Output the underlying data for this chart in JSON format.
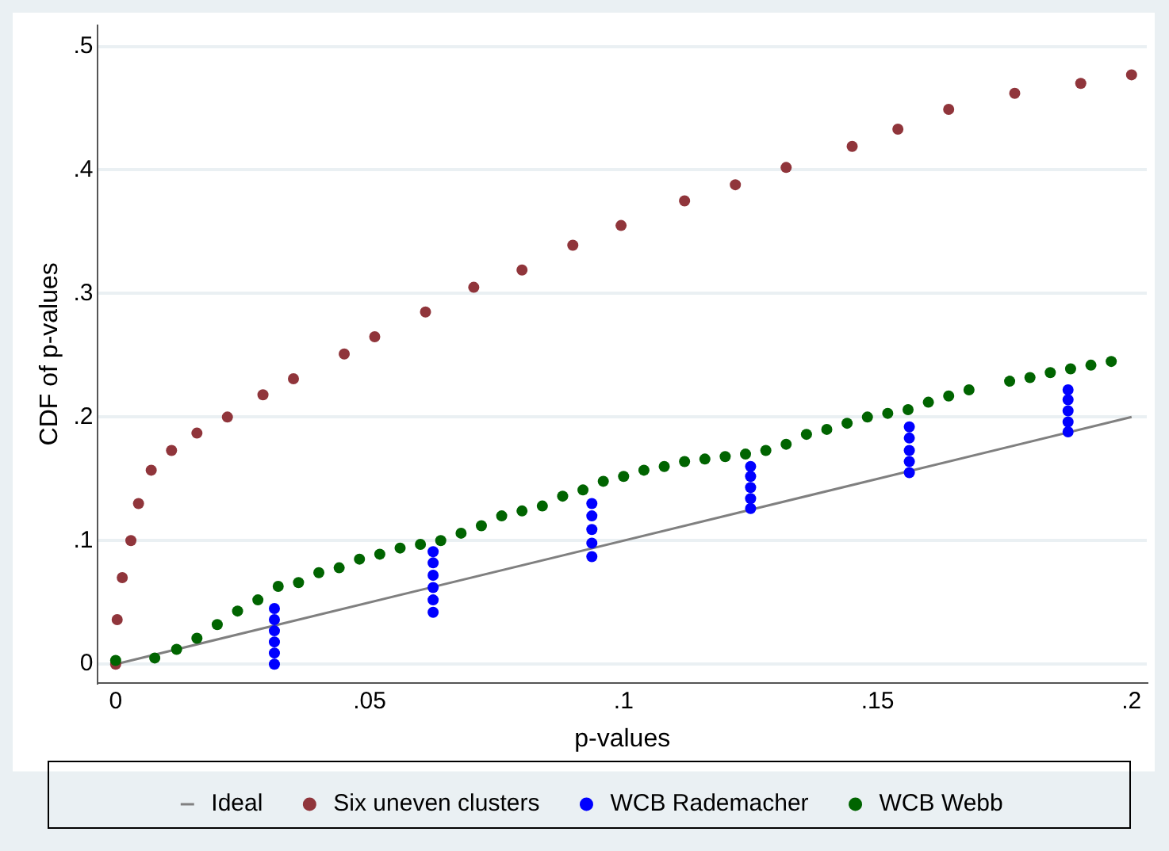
{
  "chart_data": {
    "type": "scatter",
    "xlabel": "p-values",
    "ylabel": "CDF of p-values",
    "xlim": [
      -0.0035,
      0.203
    ],
    "ylim": [
      -0.015,
      0.517
    ],
    "xticks": [
      0,
      {
        "value": 0.05,
        "label": ".05"
      },
      {
        "value": 0.1,
        "label": ".1"
      },
      {
        "value": 0.15,
        "label": ".15"
      },
      {
        "value": 0.2,
        "label": ".2"
      }
    ],
    "yticks": [
      0,
      {
        "value": 0.1,
        "label": ".1"
      },
      {
        "value": 0.2,
        "label": ".2"
      },
      {
        "value": 0.3,
        "label": ".3"
      },
      {
        "value": 0.4,
        "label": ".4"
      },
      {
        "value": 0.5,
        "label": ".5"
      }
    ],
    "grid": "y",
    "legend": "bottom",
    "marker": "circle",
    "series": [
      {
        "name": "Ideal",
        "type": "line",
        "color": "#808080",
        "marker": "none",
        "x": [
          0,
          0.2
        ],
        "values": [
          0,
          0.2
        ]
      },
      {
        "name": "Six uneven clusters",
        "color": "#90353b",
        "x": [
          0,
          0.0003,
          0.0013,
          0.003,
          0.0045,
          0.007,
          0.011,
          0.016,
          0.022,
          0.029,
          0.035,
          0.045,
          0.051,
          0.061,
          0.0705,
          0.08,
          0.09,
          0.0995,
          0.112,
          0.122,
          0.132,
          0.145,
          0.154,
          0.164,
          0.177,
          0.19,
          0.2
        ],
        "values": [
          0,
          0.036,
          0.07,
          0.1,
          0.13,
          0.157,
          0.173,
          0.187,
          0.2,
          0.218,
          0.231,
          0.251,
          0.265,
          0.285,
          0.305,
          0.319,
          0.339,
          0.355,
          0.375,
          0.388,
          0.402,
          0.419,
          0.433,
          0.449,
          0.462,
          0.47,
          0.477
        ]
      },
      {
        "name": "WCB Rademacher",
        "color": "#0000ff",
        "x": [
          0.03125,
          0.03125,
          0.03125,
          0.03125,
          0.03125,
          0.03125,
          0.0625,
          0.0625,
          0.0625,
          0.0625,
          0.0625,
          0.0625,
          0.09375,
          0.09375,
          0.09375,
          0.09375,
          0.09375,
          0.125,
          0.125,
          0.125,
          0.125,
          0.125,
          0.15625,
          0.15625,
          0.15625,
          0.15625,
          0.15625,
          0.1875,
          0.1875,
          0.1875,
          0.1875,
          0.1875
        ],
        "values": [
          0,
          0.009,
          0.018,
          0.027,
          0.036,
          0.045,
          0.042,
          0.052,
          0.062,
          0.072,
          0.082,
          0.091,
          0.087,
          0.098,
          0.109,
          0.12,
          0.13,
          0.126,
          0.134,
          0.143,
          0.152,
          0.16,
          0.155,
          0.164,
          0.173,
          0.183,
          0.192,
          0.188,
          0.196,
          0.205,
          0.214,
          0.222
        ]
      },
      {
        "name": "WCB Webb",
        "color": "#006400",
        "x": [
          0,
          0.0077,
          0.012,
          0.016,
          0.02,
          0.024,
          0.028,
          0.032,
          0.036,
          0.04,
          0.044,
          0.048,
          0.052,
          0.056,
          0.06,
          0.064,
          0.068,
          0.072,
          0.076,
          0.08,
          0.084,
          0.088,
          0.092,
          0.096,
          0.1,
          0.104,
          0.108,
          0.112,
          0.116,
          0.12,
          0.124,
          0.128,
          0.132,
          0.136,
          0.14,
          0.144,
          0.148,
          0.152,
          0.156,
          0.16,
          0.164,
          0.168,
          0.176,
          0.18,
          0.184,
          0.188,
          0.192,
          0.196
        ],
        "values": [
          0.003,
          0.005,
          0.012,
          0.021,
          0.032,
          0.043,
          0.052,
          0.063,
          0.066,
          0.074,
          0.078,
          0.085,
          0.089,
          0.094,
          0.097,
          0.1,
          0.106,
          0.112,
          0.12,
          0.124,
          0.128,
          0.136,
          0.141,
          0.148,
          0.152,
          0.157,
          0.16,
          0.164,
          0.166,
          0.168,
          0.17,
          0.173,
          0.178,
          0.186,
          0.19,
          0.195,
          0.2,
          0.203,
          0.206,
          0.212,
          0.217,
          0.222,
          0.229,
          0.232,
          0.236,
          0.239,
          0.242,
          0.245
        ]
      }
    ]
  }
}
